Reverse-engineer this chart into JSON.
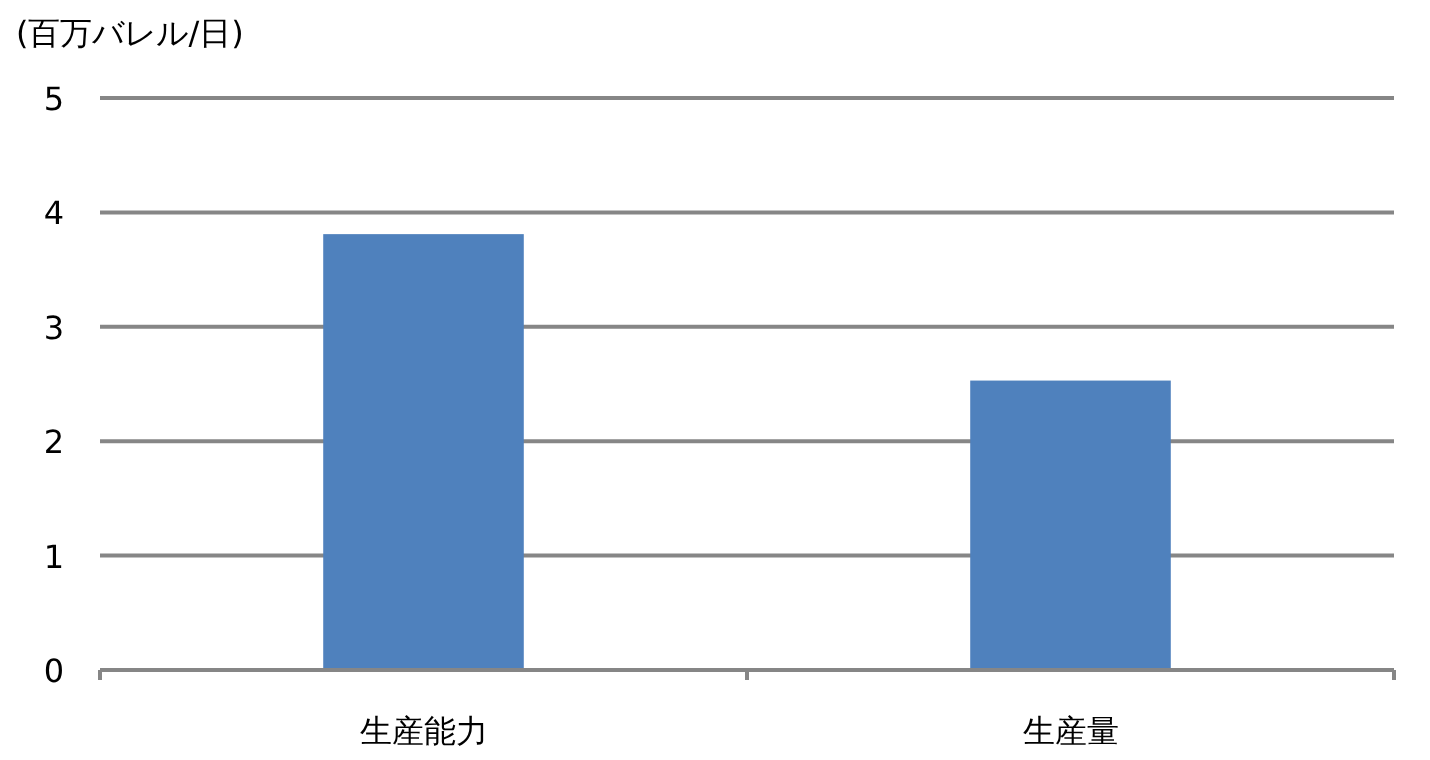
{
  "chart_data": {
    "type": "bar",
    "ylabel": "(百万バレル/日)",
    "categories": [
      "生産能力",
      "生産量"
    ],
    "values": [
      3.81,
      2.53
    ],
    "color": "#4f81bd",
    "ylim": [
      0,
      5
    ],
    "yticks": [
      0,
      1,
      2,
      3,
      4,
      5
    ],
    "grid": "y"
  }
}
